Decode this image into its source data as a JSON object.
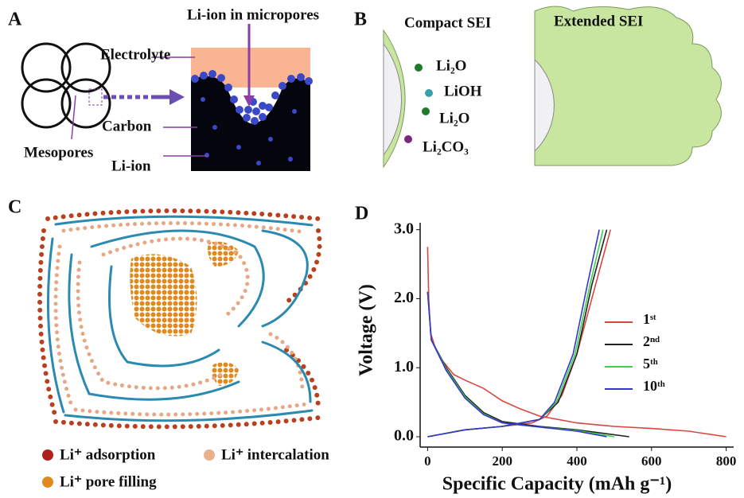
{
  "panels": {
    "a": {
      "label": "A",
      "micropores": "Li-ion in micropores",
      "electrolyte": "Electrolyte",
      "carbon": "Carbon",
      "mesopores": "Mesopores",
      "li_ion": "Li-ion"
    },
    "b": {
      "label": "B",
      "compact": "Compact SEI",
      "extended": "Extended SEI",
      "species": [
        "Li₂O",
        "LiOH",
        "Li₂O",
        "Li₂CO₃"
      ]
    },
    "c": {
      "label": "C",
      "legend": [
        "Li⁺ adsorption",
        "Li⁺ intercalation",
        "Li⁺ pore filling"
      ]
    },
    "d": {
      "label": "D"
    }
  },
  "chart_data": {
    "type": "line",
    "xlabel": "Specific Capacity (mAh g⁻¹)",
    "ylabel": "Voltage (V)",
    "xlim": [
      -20,
      820
    ],
    "ylim": [
      -0.15,
      3.1
    ],
    "xticks": [
      0,
      200,
      400,
      600,
      800
    ],
    "yticks": [
      {
        "value": 0,
        "label": "0.0"
      },
      {
        "value": 1,
        "label": "1.0"
      },
      {
        "value": 2,
        "label": "2.0"
      },
      {
        "value": 3,
        "label": "3.0"
      }
    ],
    "series": [
      {
        "name": "1ˢᵗ",
        "color": "#d9453f",
        "x": [
          0,
          3,
          8,
          20,
          40,
          70,
          100,
          150,
          200,
          250,
          300,
          400,
          500,
          600,
          700,
          800,
          null,
          0,
          100,
          200,
          280,
          320,
          360,
          400,
          430,
          460,
          490
        ],
        "values": [
          2.75,
          2.0,
          1.5,
          1.3,
          1.1,
          0.9,
          0.82,
          0.7,
          0.52,
          0.4,
          0.3,
          0.2,
          0.15,
          0.12,
          0.08,
          0.0,
          null,
          0.0,
          0.1,
          0.15,
          0.2,
          0.3,
          0.6,
          1.2,
          1.8,
          2.4,
          3.0
        ]
      },
      {
        "name": "2ⁿᵈ",
        "color": "#222222",
        "x": [
          0,
          10,
          50,
          100,
          150,
          200,
          300,
          400,
          540,
          null,
          0,
          100,
          200,
          300,
          350,
          400,
          440,
          480
        ],
        "values": [
          2.1,
          1.4,
          1.0,
          0.6,
          0.35,
          0.22,
          0.15,
          0.1,
          0.0,
          null,
          0.0,
          0.1,
          0.15,
          0.25,
          0.5,
          1.2,
          2.2,
          3.0
        ]
      },
      {
        "name": "5ᵗʰ",
        "color": "#3ed04a",
        "x": [
          0,
          10,
          50,
          100,
          150,
          200,
          300,
          400,
          500,
          null,
          0,
          100,
          200,
          300,
          345,
          395,
          435,
          470
        ],
        "values": [
          2.1,
          1.4,
          0.98,
          0.58,
          0.33,
          0.2,
          0.14,
          0.09,
          0.0,
          null,
          0.0,
          0.1,
          0.15,
          0.25,
          0.5,
          1.2,
          2.2,
          3.0
        ]
      },
      {
        "name": "10ᵗʰ",
        "color": "#3535d0",
        "x": [
          0,
          10,
          50,
          100,
          150,
          200,
          300,
          400,
          480,
          null,
          0,
          100,
          200,
          300,
          340,
          390,
          428,
          460
        ],
        "values": [
          2.1,
          1.4,
          0.96,
          0.56,
          0.32,
          0.2,
          0.14,
          0.08,
          0.0,
          null,
          0.0,
          0.1,
          0.15,
          0.25,
          0.5,
          1.2,
          2.2,
          3.0
        ]
      }
    ]
  }
}
